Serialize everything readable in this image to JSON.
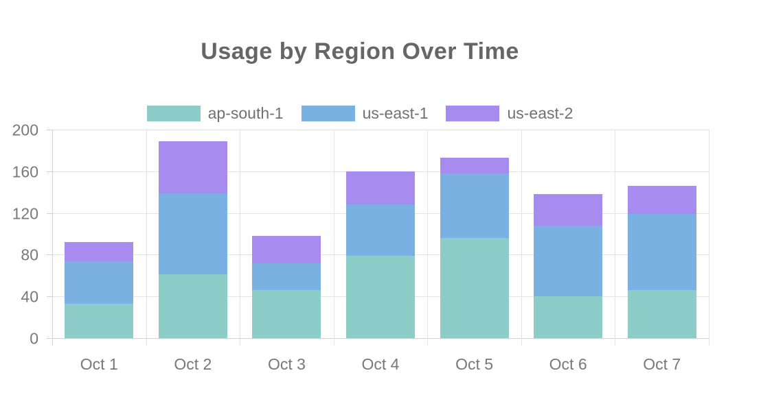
{
  "title": "Usage by Region Over Time",
  "chart_data": {
    "type": "bar",
    "stacked": true,
    "title": "Usage by Region Over Time",
    "categories": [
      "Oct 1",
      "Oct 2",
      "Oct 3",
      "Oct 4",
      "Oct 5",
      "Oct 6",
      "Oct 7"
    ],
    "series": [
      {
        "name": "ap-south-1",
        "color": "#8ccdc7",
        "values": [
          33,
          61,
          46,
          79,
          96,
          40,
          46
        ]
      },
      {
        "name": "us-east-1",
        "color": "#79b1e3",
        "values": [
          41,
          78,
          26,
          49,
          62,
          68,
          73
        ]
      },
      {
        "name": "us-east-2",
        "color": "#a78bef",
        "values": [
          18,
          50,
          26,
          32,
          15,
          30,
          27
        ]
      }
    ],
    "ylim": [
      0,
      200
    ],
    "y_ticks": [
      0,
      40,
      80,
      120,
      160,
      200
    ],
    "xlabel": "",
    "ylabel": "",
    "legend_position": "top",
    "grid": true
  },
  "colors": {
    "title_text": "#666666",
    "axis_text": "#77787b",
    "grid_line": "#e3e3e3",
    "axis_line": "#cfd2d5",
    "background": "#ffffff"
  }
}
